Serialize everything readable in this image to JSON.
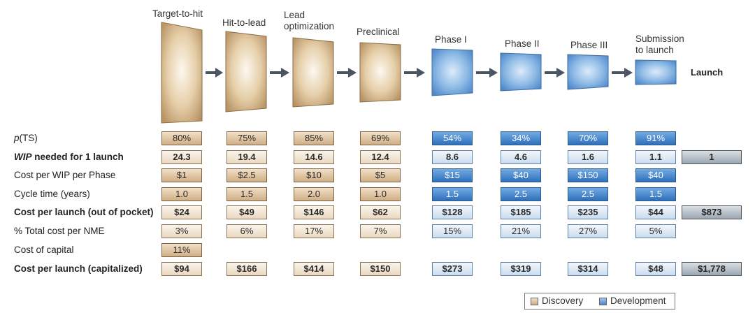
{
  "stages": [
    {
      "label": "Target-to-hit",
      "type": "discovery"
    },
    {
      "label": "Hit-to-lead",
      "type": "discovery"
    },
    {
      "label": "Lead optimization",
      "type": "discovery"
    },
    {
      "label": "Preclinical",
      "type": "discovery"
    },
    {
      "label": "Phase I",
      "type": "development"
    },
    {
      "label": "Phase II",
      "type": "development"
    },
    {
      "label": "Phase III",
      "type": "development"
    },
    {
      "label": "Submission to launch",
      "type": "development"
    }
  ],
  "launch_label": "Launch",
  "rows": [
    {
      "label_em": "p",
      "label": "(TS)",
      "bold": false,
      "values": [
        "80%",
        "75%",
        "85%",
        "69%",
        "54%",
        "34%",
        "70%",
        "91%"
      ],
      "launch": ""
    },
    {
      "label_em": "WIP",
      "label": " needed for 1 launch",
      "bold": true,
      "values": [
        "24.3",
        "19.4",
        "14.6",
        "12.4",
        "8.6",
        "4.6",
        "1.6",
        "1.1"
      ],
      "launch": "1"
    },
    {
      "label_em": "",
      "label": "Cost per WIP per Phase",
      "bold": false,
      "values": [
        "$1",
        "$2.5",
        "$10",
        "$5",
        "$15",
        "$40",
        "$150",
        "$40"
      ],
      "launch": ""
    },
    {
      "label_em": "",
      "label": "Cycle time (years)",
      "bold": false,
      "values": [
        "1.0",
        "1.5",
        "2.0",
        "1.0",
        "1.5",
        "2.5",
        "2.5",
        "1.5"
      ],
      "launch": ""
    },
    {
      "label_em": "",
      "label": "Cost per launch (out of pocket)",
      "bold": true,
      "values": [
        "$24",
        "$49",
        "$146",
        "$62",
        "$128",
        "$185",
        "$235",
        "$44"
      ],
      "launch": "$873"
    },
    {
      "label_em": "",
      "label": "% Total cost per NME",
      "bold": false,
      "values": [
        "3%",
        "6%",
        "17%",
        "7%",
        "15%",
        "21%",
        "27%",
        "5%"
      ],
      "launch": ""
    },
    {
      "label_em": "",
      "label": "Cost of capital",
      "bold": false,
      "values": [
        "11%",
        "",
        "",
        "",
        "",
        "",
        "",
        ""
      ],
      "launch": ""
    },
    {
      "label_em": "",
      "label": "Cost per launch (capitalized)",
      "bold": true,
      "values": [
        "$94",
        "$166",
        "$414",
        "$150",
        "$273",
        "$319",
        "$314",
        "$48"
      ],
      "launch": "$1,778"
    }
  ],
  "legend": {
    "discovery": "Discovery",
    "development": "Development"
  },
  "colors": {
    "discovery": "#d9b98f",
    "development": "#5b93d3",
    "arrow": "#4a5561"
  }
}
